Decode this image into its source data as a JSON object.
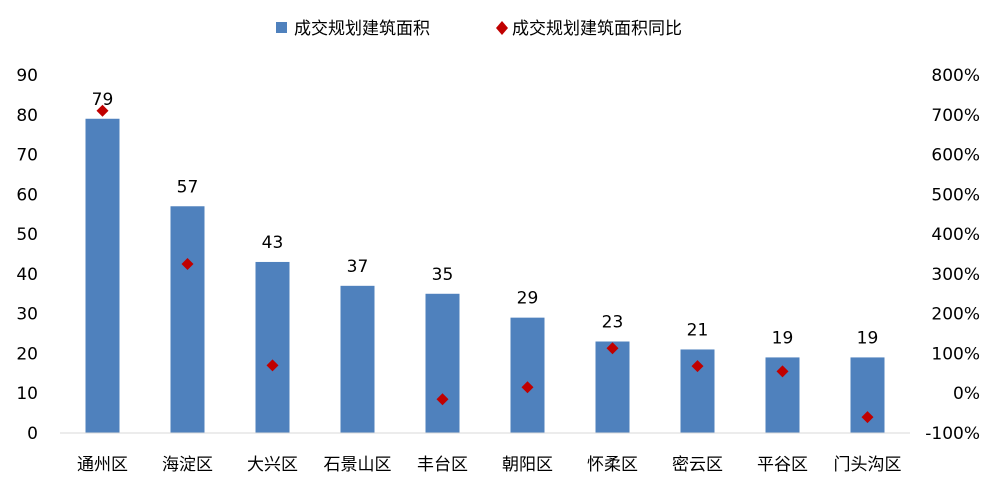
{
  "chart_data": {
    "type": "bar",
    "categories": [
      "通州区",
      "海淀区",
      "大兴区",
      "石景山区",
      "丰台区",
      "朝阳区",
      "怀柔区",
      "密云区",
      "平谷区",
      "门头沟区"
    ],
    "series": [
      {
        "name": "成交规划建筑面积",
        "type": "bar",
        "axis": "left",
        "color": "#4F81BD",
        "values": [
          79,
          57,
          43,
          37,
          35,
          29,
          23,
          21,
          19,
          19
        ],
        "data_labels": [
          "79",
          "57",
          "43",
          "37",
          "35",
          "29",
          "23",
          "21",
          "19",
          "19"
        ]
      },
      {
        "name": "成交规划建筑面积同比",
        "type": "scatter",
        "marker": "diamond",
        "axis": "right",
        "color": "#C00000",
        "values": [
          710,
          325,
          70,
          null,
          -15,
          15,
          113,
          68,
          55,
          -60
        ]
      }
    ],
    "y_left": {
      "min": 0,
      "max": 90,
      "step": 10,
      "ticks": [
        "0",
        "10",
        "20",
        "30",
        "40",
        "50",
        "60",
        "70",
        "80",
        "90"
      ]
    },
    "y_right": {
      "min": -100,
      "max": 800,
      "step": 100,
      "ticks": [
        "-100%",
        "0%",
        "100%",
        "200%",
        "300%",
        "400%",
        "500%",
        "600%",
        "700%",
        "800%"
      ]
    },
    "grid": false,
    "legend_position": "top-center"
  }
}
